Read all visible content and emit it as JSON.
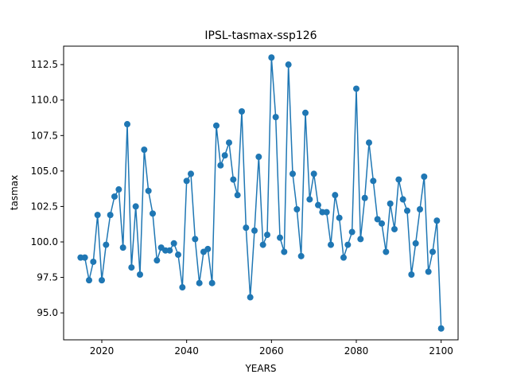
{
  "chart_data": {
    "type": "line",
    "title": "IPSL-tasmax-ssp126",
    "xlabel": "YEARS",
    "ylabel": "tasmax",
    "xlim": [
      2011,
      2104
    ],
    "ylim": [
      93.1,
      113.8
    ],
    "xticks": [
      2020,
      2040,
      2060,
      2080,
      2100
    ],
    "yticks": [
      95.0,
      97.5,
      100.0,
      102.5,
      105.0,
      107.5,
      110.0,
      112.5
    ],
    "xtick_labels": [
      "2020",
      "2040",
      "2060",
      "2080",
      "2100"
    ],
    "ytick_labels": [
      "95.0",
      "97.5",
      "100.0",
      "102.5",
      "105.0",
      "107.5",
      "110.0",
      "112.5"
    ],
    "grid": false,
    "line_color": "#1f77b4",
    "marker": "circle",
    "series": [
      {
        "x": [
          2015,
          2016,
          2017,
          2018,
          2019,
          2020,
          2021,
          2022,
          2023,
          2024,
          2025,
          2026,
          2027,
          2028,
          2029,
          2030,
          2031,
          2032,
          2033,
          2034,
          2035,
          2036,
          2037,
          2038,
          2039,
          2040,
          2041,
          2042,
          2043,
          2044,
          2045,
          2046,
          2047,
          2048,
          2049,
          2050,
          2051,
          2052,
          2053,
          2054,
          2055,
          2056,
          2057,
          2058,
          2059,
          2060,
          2061,
          2062,
          2063,
          2064,
          2065,
          2066,
          2067,
          2068,
          2069,
          2070,
          2071,
          2072,
          2073,
          2074,
          2075,
          2076,
          2077,
          2078,
          2079,
          2080,
          2081,
          2082,
          2083,
          2084,
          2085,
          2086,
          2087,
          2088,
          2089,
          2090,
          2091,
          2092,
          2093,
          2094,
          2095,
          2096,
          2097,
          2098,
          2099,
          2100
        ],
        "y": [
          98.9,
          98.9,
          97.3,
          98.6,
          101.9,
          97.3,
          99.8,
          101.9,
          103.2,
          103.7,
          99.6,
          108.3,
          98.2,
          102.5,
          97.7,
          106.5,
          103.6,
          102.0,
          98.7,
          99.6,
          99.4,
          99.4,
          99.9,
          99.1,
          96.8,
          104.3,
          104.8,
          100.2,
          97.1,
          99.3,
          99.5,
          97.1,
          108.2,
          105.4,
          106.1,
          107.0,
          104.4,
          103.3,
          109.2,
          101.0,
          96.1,
          100.8,
          106.0,
          99.8,
          100.5,
          113.0,
          108.8,
          100.3,
          99.3,
          112.5,
          104.8,
          102.3,
          99.0,
          109.1,
          103.0,
          104.8,
          102.6,
          102.1,
          102.1,
          99.8,
          103.3,
          101.7,
          98.9,
          99.8,
          100.7,
          110.8,
          100.2,
          103.1,
          107.0,
          104.3,
          101.6,
          101.3,
          99.3,
          102.7,
          100.9,
          104.4,
          103.0,
          102.2,
          97.7,
          99.9,
          102.3,
          104.6,
          97.9,
          99.3,
          101.5,
          93.9
        ]
      }
    ]
  }
}
